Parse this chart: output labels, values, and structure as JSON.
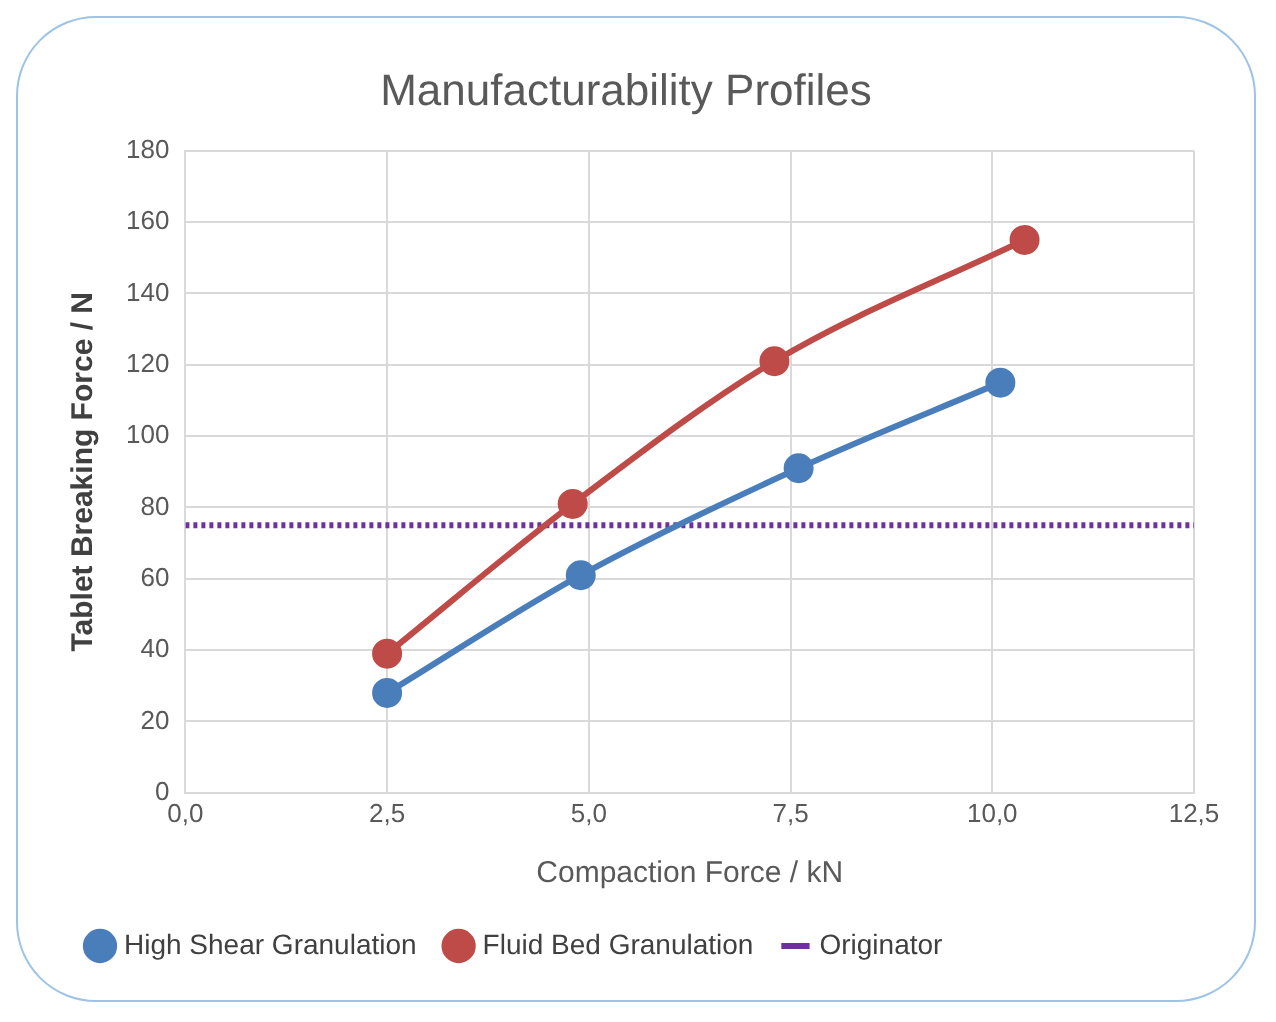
{
  "chart_data": {
    "type": "line",
    "title": "Manufacturability Profiles",
    "xlabel": "Compaction Force / kN",
    "ylabel": "Tablet Breaking Force / N",
    "series": [
      {
        "name": "High Shear Granulation",
        "color": "#4a7ebb",
        "x": [
          2.5,
          4.9,
          7.6,
          10.1
        ],
        "values": [
          28,
          61,
          91,
          115
        ],
        "marker": "circle",
        "line_style": "solid"
      },
      {
        "name": "Fluid Bed Granulation",
        "color": "#be4b48",
        "x": [
          2.5,
          4.8,
          7.3,
          10.4
        ],
        "values": [
          39,
          81,
          121,
          155
        ],
        "marker": "circle",
        "line_style": "solid"
      },
      {
        "name": "Originator",
        "color": "#7030a0",
        "x": [
          0,
          12.5
        ],
        "values": [
          75,
          75
        ],
        "marker": "none",
        "line_style": "dotted"
      }
    ],
    "xlim": [
      0,
      12.5
    ],
    "xticks": [
      {
        "value": 0,
        "label": "0,0"
      },
      {
        "value": 2.5,
        "label": "2,5"
      },
      {
        "value": 5,
        "label": "5,0"
      },
      {
        "value": 7.5,
        "label": "7,5"
      },
      {
        "value": 10,
        "label": "10,0"
      },
      {
        "value": 12.5,
        "label": "12,5"
      }
    ],
    "ylim": [
      0,
      180
    ],
    "yticks": [
      0,
      20,
      40,
      60,
      80,
      100,
      120,
      140,
      160,
      180
    ],
    "grid": true,
    "legend": "bottom"
  }
}
